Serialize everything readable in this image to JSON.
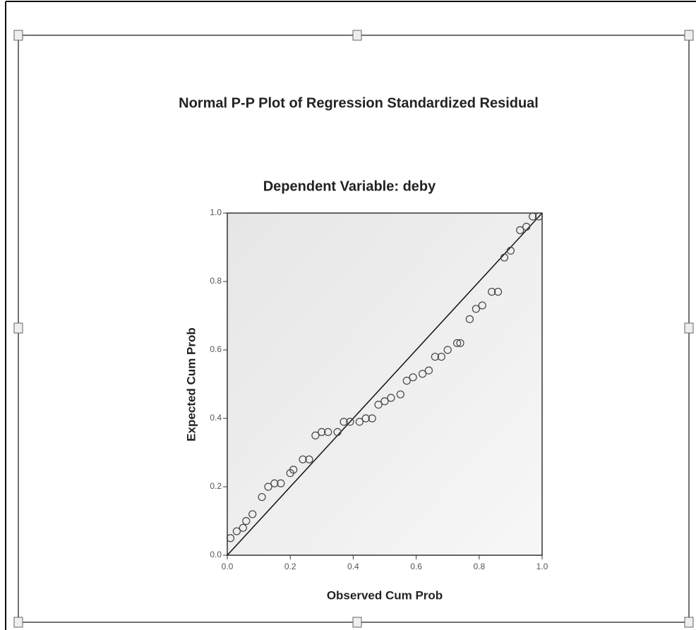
{
  "chart_data": {
    "type": "scatter",
    "title": "Normal P-P Plot of Regression Standardized Residual",
    "subtitle": "Dependent Variable: deby",
    "x_label": "Observed Cum Prob",
    "y_label": "Expected Cum Prob",
    "x": [
      0.01,
      0.03,
      0.05,
      0.06,
      0.08,
      0.11,
      0.13,
      0.15,
      0.17,
      0.2,
      0.21,
      0.24,
      0.26,
      0.28,
      0.3,
      0.32,
      0.35,
      0.37,
      0.39,
      0.42,
      0.44,
      0.46,
      0.48,
      0.5,
      0.52,
      0.55,
      0.57,
      0.59,
      0.62,
      0.64,
      0.66,
      0.68,
      0.7,
      0.73,
      0.74,
      0.77,
      0.79,
      0.81,
      0.84,
      0.86,
      0.88,
      0.9,
      0.93,
      0.95,
      0.97,
      0.99
    ],
    "values": [
      0.05,
      0.07,
      0.08,
      0.1,
      0.12,
      0.17,
      0.2,
      0.21,
      0.21,
      0.24,
      0.25,
      0.28,
      0.28,
      0.35,
      0.36,
      0.36,
      0.36,
      0.39,
      0.39,
      0.39,
      0.4,
      0.4,
      0.44,
      0.45,
      0.46,
      0.47,
      0.51,
      0.52,
      0.53,
      0.54,
      0.58,
      0.58,
      0.6,
      0.62,
      0.62,
      0.69,
      0.72,
      0.73,
      0.77,
      0.77,
      0.87,
      0.89,
      0.95,
      0.96,
      0.99,
      0.99
    ],
    "xlim": [
      0,
      1
    ],
    "ylim": [
      0,
      1
    ],
    "xticks": [
      {
        "value": 0,
        "label": "0.0"
      },
      0.2,
      0.4,
      0.6,
      0.8,
      {
        "value": 1,
        "label": "1.0"
      }
    ],
    "yticks": [
      {
        "value": 0,
        "label": "0.0"
      },
      0.2,
      0.4,
      0.6,
      0.8,
      {
        "value": 1,
        "label": "1.0"
      }
    ]
  }
}
